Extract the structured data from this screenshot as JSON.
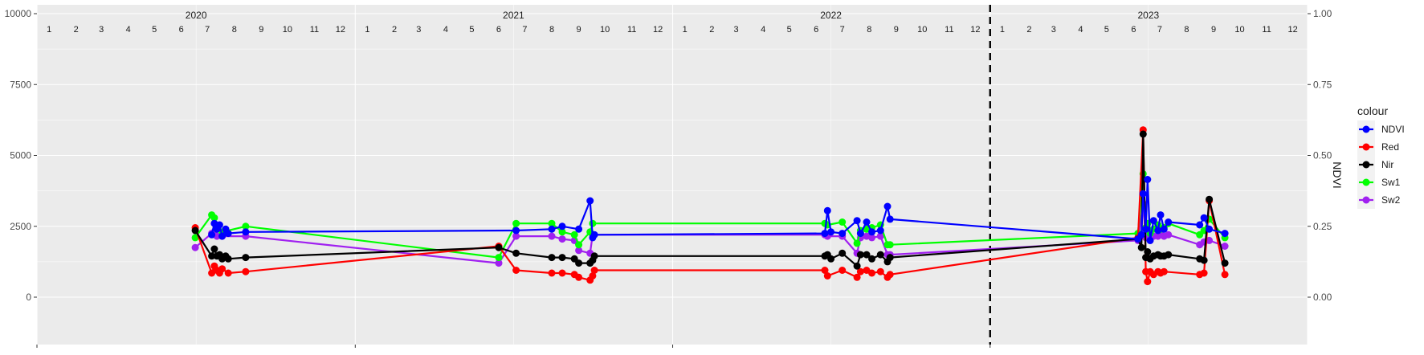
{
  "chart_data": {
    "type": "line",
    "title": "",
    "xlabel": "",
    "ylabel_left": "",
    "ylabel_right": "NDVI",
    "ylim_left": [
      0,
      10000
    ],
    "ylim_right": [
      0.0,
      1.0
    ],
    "yticks_left": [
      "0",
      "2500",
      "5000",
      "7500",
      "10000"
    ],
    "yticks_right": [
      "0.00",
      "0.25",
      "0.50",
      "0.75",
      "1.00"
    ],
    "x_range": [
      "2020-01-01",
      "2024-01-01"
    ],
    "years": [
      "2020",
      "2021",
      "2022",
      "2023"
    ],
    "months": [
      "1",
      "2",
      "3",
      "4",
      "5",
      "6",
      "7",
      "8",
      "9",
      "10",
      "11",
      "12"
    ],
    "vline_date": "2023-01-01",
    "vline_style": "dashed",
    "grid": true,
    "legend_title": "colour",
    "legend_position": "right",
    "series": [
      {
        "name": "NDVI",
        "color": "#0000ff",
        "points": [
          [
            "2020-07-20",
            2200
          ],
          [
            "2020-07-23",
            2600
          ],
          [
            "2020-07-26",
            2400
          ],
          [
            "2020-07-29",
            2550
          ],
          [
            "2020-08-01",
            2150
          ],
          [
            "2020-08-05",
            2400
          ],
          [
            "2020-08-08",
            2250
          ],
          [
            "2020-08-28",
            2300
          ],
          [
            "2021-07-05",
            2350
          ],
          [
            "2021-08-15",
            2400
          ],
          [
            "2021-08-27",
            2500
          ],
          [
            "2021-09-15",
            2400
          ],
          [
            "2021-09-28",
            3400
          ],
          [
            "2021-10-01",
            2100
          ],
          [
            "2021-10-03",
            2200
          ],
          [
            "2022-06-25",
            2250
          ],
          [
            "2022-06-28",
            3050
          ],
          [
            "2022-07-02",
            2300
          ],
          [
            "2022-07-15",
            2250
          ],
          [
            "2022-08-01",
            2700
          ],
          [
            "2022-08-05",
            2250
          ],
          [
            "2022-08-12",
            2650
          ],
          [
            "2022-08-18",
            2300
          ],
          [
            "2022-08-28",
            2350
          ],
          [
            "2022-09-05",
            3200
          ],
          [
            "2022-09-08",
            2750
          ],
          [
            "2023-06-20",
            2050
          ],
          [
            "2023-06-24",
            2200
          ],
          [
            "2023-06-26",
            3650
          ],
          [
            "2023-06-29",
            2400
          ],
          [
            "2023-07-01",
            4150
          ],
          [
            "2023-07-04",
            2000
          ],
          [
            "2023-07-08",
            2700
          ],
          [
            "2023-07-13",
            2350
          ],
          [
            "2023-07-16",
            2900
          ],
          [
            "2023-07-20",
            2400
          ],
          [
            "2023-07-25",
            2650
          ],
          [
            "2023-08-30",
            2550
          ],
          [
            "2023-09-04",
            2800
          ],
          [
            "2023-09-10",
            2400
          ],
          [
            "2023-09-28",
            2250
          ]
        ]
      },
      {
        "name": "Red",
        "color": "#ff0000",
        "points": [
          [
            "2020-07-01",
            2450
          ],
          [
            "2020-07-20",
            850
          ],
          [
            "2020-07-23",
            1100
          ],
          [
            "2020-07-26",
            950
          ],
          [
            "2020-07-29",
            850
          ],
          [
            "2020-08-01",
            1000
          ],
          [
            "2020-08-08",
            850
          ],
          [
            "2020-08-28",
            900
          ],
          [
            "2021-06-15",
            1800
          ],
          [
            "2021-07-05",
            950
          ],
          [
            "2021-08-15",
            850
          ],
          [
            "2021-08-27",
            850
          ],
          [
            "2021-09-10",
            800
          ],
          [
            "2021-09-15",
            700
          ],
          [
            "2021-09-28",
            600
          ],
          [
            "2021-10-01",
            750
          ],
          [
            "2021-10-03",
            950
          ],
          [
            "2022-06-25",
            950
          ],
          [
            "2022-06-28",
            750
          ],
          [
            "2022-07-15",
            950
          ],
          [
            "2022-08-01",
            700
          ],
          [
            "2022-08-05",
            900
          ],
          [
            "2022-08-12",
            950
          ],
          [
            "2022-08-18",
            850
          ],
          [
            "2022-08-28",
            900
          ],
          [
            "2022-09-05",
            700
          ],
          [
            "2022-09-08",
            800
          ],
          [
            "2023-06-20",
            2100
          ],
          [
            "2023-06-26",
            5900
          ],
          [
            "2023-06-29",
            900
          ],
          [
            "2023-07-01",
            550
          ],
          [
            "2023-07-04",
            900
          ],
          [
            "2023-07-08",
            800
          ],
          [
            "2023-07-13",
            900
          ],
          [
            "2023-07-16",
            850
          ],
          [
            "2023-07-20",
            900
          ],
          [
            "2023-08-30",
            800
          ],
          [
            "2023-09-04",
            850
          ],
          [
            "2023-09-10",
            3400
          ],
          [
            "2023-09-28",
            800
          ]
        ]
      },
      {
        "name": "Nir",
        "color": "#000000",
        "points": [
          [
            "2020-07-01",
            2350
          ],
          [
            "2020-07-20",
            1450
          ],
          [
            "2020-07-23",
            1700
          ],
          [
            "2020-07-26",
            1450
          ],
          [
            "2020-07-29",
            1500
          ],
          [
            "2020-08-01",
            1350
          ],
          [
            "2020-08-05",
            1450
          ],
          [
            "2020-08-08",
            1350
          ],
          [
            "2020-08-28",
            1400
          ],
          [
            "2021-06-15",
            1750
          ],
          [
            "2021-07-05",
            1550
          ],
          [
            "2021-08-15",
            1400
          ],
          [
            "2021-08-27",
            1400
          ],
          [
            "2021-09-10",
            1350
          ],
          [
            "2021-09-15",
            1200
          ],
          [
            "2021-09-28",
            1200
          ],
          [
            "2021-10-01",
            1300
          ],
          [
            "2021-10-03",
            1450
          ],
          [
            "2022-06-25",
            1450
          ],
          [
            "2022-06-28",
            1500
          ],
          [
            "2022-07-02",
            1350
          ],
          [
            "2022-07-15",
            1550
          ],
          [
            "2022-08-01",
            1100
          ],
          [
            "2022-08-05",
            1500
          ],
          [
            "2022-08-12",
            1500
          ],
          [
            "2022-08-18",
            1350
          ],
          [
            "2022-08-28",
            1500
          ],
          [
            "2022-09-05",
            1250
          ],
          [
            "2022-09-08",
            1400
          ],
          [
            "2023-06-20",
            2050
          ],
          [
            "2023-06-24",
            1750
          ],
          [
            "2023-06-26",
            5750
          ],
          [
            "2023-06-29",
            1400
          ],
          [
            "2023-07-01",
            1600
          ],
          [
            "2023-07-04",
            1350
          ],
          [
            "2023-07-08",
            1450
          ],
          [
            "2023-07-13",
            1500
          ],
          [
            "2023-07-16",
            1450
          ],
          [
            "2023-07-20",
            1450
          ],
          [
            "2023-07-25",
            1500
          ],
          [
            "2023-08-30",
            1350
          ],
          [
            "2023-09-04",
            1300
          ],
          [
            "2023-09-10",
            3450
          ],
          [
            "2023-09-28",
            1200
          ]
        ]
      },
      {
        "name": "Sw1",
        "color": "#00ff00",
        "points": [
          [
            "2020-07-01",
            2100
          ],
          [
            "2020-07-20",
            2900
          ],
          [
            "2020-07-23",
            2800
          ],
          [
            "2020-07-26",
            2500
          ],
          [
            "2020-08-01",
            2300
          ],
          [
            "2020-08-28",
            2500
          ],
          [
            "2021-06-15",
            1400
          ],
          [
            "2021-07-05",
            2600
          ],
          [
            "2021-08-15",
            2600
          ],
          [
            "2021-08-27",
            2300
          ],
          [
            "2021-09-10",
            2200
          ],
          [
            "2021-09-15",
            1850
          ],
          [
            "2021-09-28",
            2300
          ],
          [
            "2021-10-01",
            2600
          ],
          [
            "2022-06-25",
            2600
          ],
          [
            "2022-06-28",
            2550
          ],
          [
            "2022-07-15",
            2650
          ],
          [
            "2022-08-01",
            1900
          ],
          [
            "2022-08-05",
            2350
          ],
          [
            "2022-08-12",
            2400
          ],
          [
            "2022-08-18",
            2450
          ],
          [
            "2022-08-28",
            2550
          ],
          [
            "2022-09-05",
            1850
          ],
          [
            "2022-09-08",
            1850
          ],
          [
            "2023-06-20",
            2250
          ],
          [
            "2023-06-26",
            4350
          ],
          [
            "2023-06-29",
            2450
          ],
          [
            "2023-07-01",
            2600
          ],
          [
            "2023-07-04",
            2250
          ],
          [
            "2023-07-08",
            2400
          ],
          [
            "2023-07-13",
            2550
          ],
          [
            "2023-07-16",
            2400
          ],
          [
            "2023-07-20",
            2450
          ],
          [
            "2023-07-25",
            2600
          ],
          [
            "2023-08-30",
            2200
          ],
          [
            "2023-09-04",
            2350
          ],
          [
            "2023-09-10",
            2750
          ],
          [
            "2023-09-28",
            2100
          ]
        ]
      },
      {
        "name": "Sw2",
        "color": "#a020f0",
        "points": [
          [
            "2020-07-01",
            1750
          ],
          [
            "2020-07-20",
            2250
          ],
          [
            "2020-07-23",
            2300
          ],
          [
            "2020-07-26",
            2150
          ],
          [
            "2020-08-01",
            2150
          ],
          [
            "2020-08-28",
            2150
          ],
          [
            "2021-06-15",
            1200
          ],
          [
            "2021-07-05",
            2150
          ],
          [
            "2021-08-15",
            2150
          ],
          [
            "2021-08-27",
            2050
          ],
          [
            "2021-09-10",
            2000
          ],
          [
            "2021-09-15",
            1650
          ],
          [
            "2021-09-28",
            1550
          ],
          [
            "2021-10-01",
            2200
          ],
          [
            "2022-06-25",
            2200
          ],
          [
            "2022-06-28",
            2150
          ],
          [
            "2022-07-15",
            2150
          ],
          [
            "2022-08-01",
            1550
          ],
          [
            "2022-08-05",
            2100
          ],
          [
            "2022-08-12",
            2150
          ],
          [
            "2022-08-18",
            2100
          ],
          [
            "2022-08-28",
            2150
          ],
          [
            "2022-09-05",
            1500
          ],
          [
            "2022-09-08",
            1500
          ],
          [
            "2023-06-20",
            2000
          ],
          [
            "2023-06-26",
            3300
          ],
          [
            "2023-06-29",
            2100
          ],
          [
            "2023-07-01",
            2300
          ],
          [
            "2023-07-04",
            2000
          ],
          [
            "2023-07-08",
            2150
          ],
          [
            "2023-07-13",
            2150
          ],
          [
            "2023-07-16",
            2200
          ],
          [
            "2023-07-20",
            2150
          ],
          [
            "2023-07-25",
            2200
          ],
          [
            "2023-08-30",
            1850
          ],
          [
            "2023-09-04",
            1950
          ],
          [
            "2023-09-10",
            2000
          ],
          [
            "2023-09-28",
            1800
          ]
        ]
      }
    ]
  }
}
